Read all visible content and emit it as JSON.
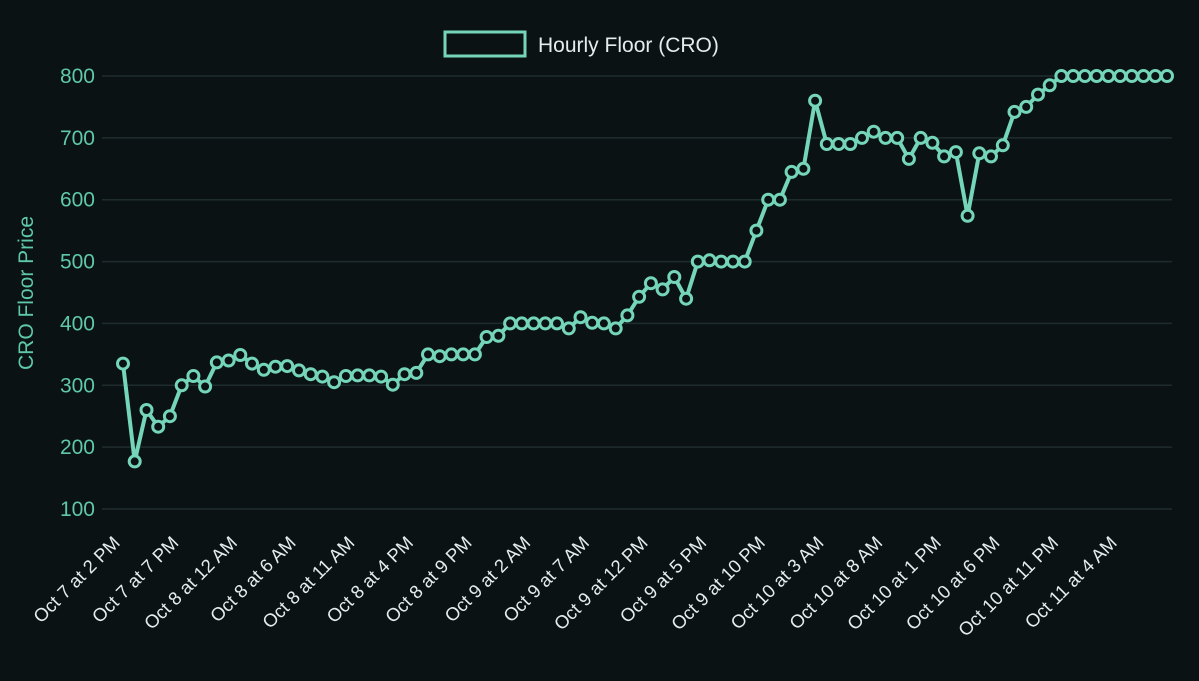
{
  "chart_data": {
    "type": "line",
    "legend": {
      "label": "Hourly Floor (CRO)",
      "position": "top-center"
    },
    "ylabel": "CRO Floor Price",
    "xlabel": "",
    "ylim": [
      100,
      800
    ],
    "yticks": [
      100,
      200,
      300,
      400,
      500,
      600,
      700,
      800
    ],
    "grid": true,
    "xtick_labels": [
      "Oct 7 at 2 PM",
      "Oct 7 at 7 PM",
      "Oct 8 at 12 AM",
      "Oct 8 at 6 AM",
      "Oct 8 at 11 AM",
      "Oct 8 at 4 PM",
      "Oct 8 at 9 PM",
      "Oct 9 at 2 AM",
      "Oct 9 at 7 AM",
      "Oct 9 at 12 PM",
      "Oct 9 at 5 PM",
      "Oct 9 at 10 PM",
      "Oct 10 at 3 AM",
      "Oct 10 at 8 AM",
      "Oct 10 at 1 PM",
      "Oct 10 at 6 PM",
      "Oct 10 at 11 PM",
      "Oct 11 at 4 AM"
    ],
    "series": [
      {
        "name": "Hourly Floor (CRO)",
        "color": "#74d5b8",
        "values": [
          335,
          177,
          260,
          233,
          250,
          300,
          315,
          298,
          337,
          340,
          349,
          335,
          325,
          330,
          331,
          324,
          318,
          314,
          305,
          315,
          316,
          316,
          314,
          301,
          318,
          320,
          350,
          347,
          350,
          350,
          350,
          378,
          380,
          400,
          400,
          400,
          400,
          400,
          392,
          410,
          401,
          400,
          392,
          413,
          443,
          465,
          455,
          475,
          440,
          500,
          502,
          500,
          500,
          500,
          550,
          600,
          600,
          645,
          650,
          760,
          690,
          690,
          690,
          700,
          710,
          700,
          700,
          666,
          700,
          692,
          670,
          677,
          574,
          675,
          670,
          688,
          742,
          750,
          770,
          785,
          800,
          800,
          800,
          800,
          800,
          800,
          800,
          800,
          800,
          800
        ]
      }
    ]
  }
}
